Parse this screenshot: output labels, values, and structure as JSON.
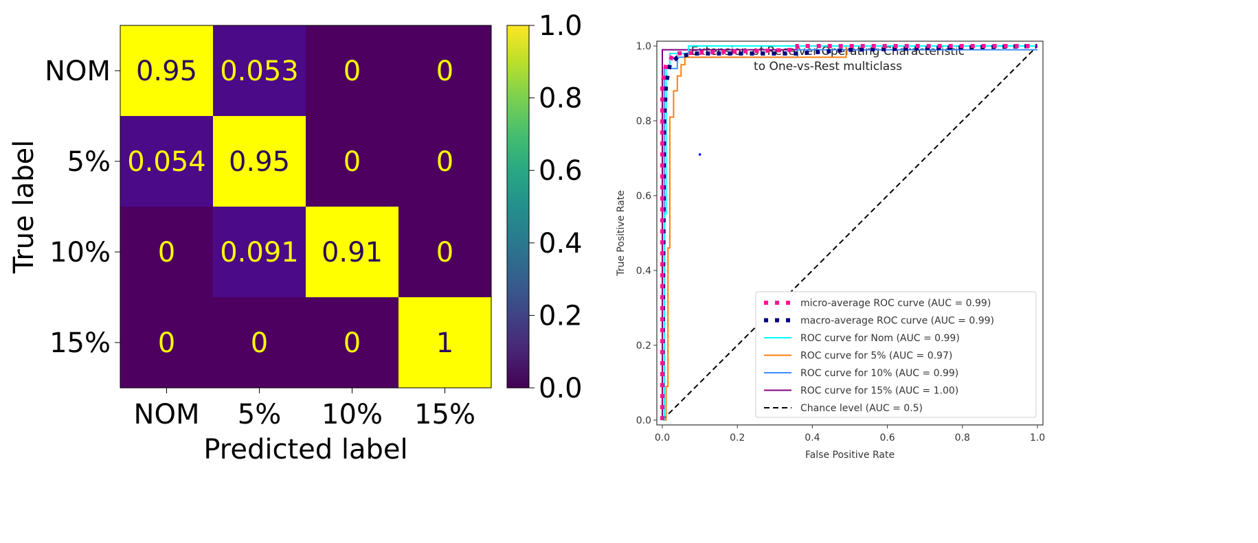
{
  "chart_data": [
    {
      "type": "heatmap",
      "title": "",
      "xlabel": "Predicted label",
      "ylabel": "True label",
      "x_categories": [
        "NOM",
        "5%",
        "10%",
        "15%"
      ],
      "y_categories": [
        "NOM",
        "5%",
        "10%",
        "15%"
      ],
      "values": [
        [
          0.95,
          0.053,
          0,
          0
        ],
        [
          0.054,
          0.95,
          0,
          0
        ],
        [
          0,
          0.091,
          0.91,
          0
        ],
        [
          0,
          0,
          0,
          1
        ]
      ],
      "value_labels": [
        [
          "0.95",
          "0.053",
          "0",
          "0"
        ],
        [
          "0.054",
          "0.95",
          "0",
          "0"
        ],
        [
          "0",
          "0.091",
          "0.91",
          "0"
        ],
        [
          "0",
          "0",
          "0",
          "1"
        ]
      ],
      "colormap": "viridis",
      "colorbar": {
        "range": [
          0,
          1
        ],
        "ticks": [
          "0.0",
          "0.2",
          "0.4",
          "0.6",
          "0.8",
          "1.0"
        ]
      }
    },
    {
      "type": "line",
      "title": "Extension of Receiver Operating Characteristic",
      "subtitle": "to One-vs-Rest multiclass",
      "xlabel": "False Positive Rate",
      "ylabel": "True Positive Rate",
      "xlim": [
        0,
        1
      ],
      "ylim": [
        0,
        1
      ],
      "xticks": [
        "0.0",
        "0.2",
        "0.4",
        "0.6",
        "0.8",
        "1.0"
      ],
      "yticks": [
        "0.0",
        "0.2",
        "0.4",
        "0.6",
        "0.8",
        "1.0"
      ],
      "legend_position": "lower-right",
      "series": [
        {
          "name": "micro-average ROC curve (AUC = 0.99)",
          "color": "#ff1493",
          "style": "dotted",
          "points": [
            [
              0,
              0
            ],
            [
              0,
              0.9
            ],
            [
              0.01,
              0.95
            ],
            [
              0.02,
              0.96
            ],
            [
              0.03,
              0.98
            ],
            [
              0.36,
              0.99
            ],
            [
              0.36,
              1.0
            ],
            [
              1,
              1
            ]
          ]
        },
        {
          "name": "macro-average ROC curve (AUC = 0.99)",
          "color": "#000080",
          "style": "dotted",
          "points": [
            [
              0,
              0
            ],
            [
              0.005,
              0.8
            ],
            [
              0.01,
              0.9
            ],
            [
              0.02,
              0.95
            ],
            [
              0.04,
              0.97
            ],
            [
              0.08,
              0.98
            ],
            [
              0.36,
              0.98
            ],
            [
              0.5,
              0.99
            ],
            [
              1,
              1
            ]
          ]
        },
        {
          "name": "ROC curve for Nom (AUC = 0.99)",
          "color": "#00ffff",
          "style": "solid",
          "points": [
            [
              0,
              0
            ],
            [
              0.005,
              0
            ],
            [
              0.005,
              0.55
            ],
            [
              0.01,
              0.55
            ],
            [
              0.01,
              0.94
            ],
            [
              0.02,
              0.94
            ],
            [
              0.02,
              0.98
            ],
            [
              0.07,
              0.98
            ],
            [
              0.07,
              1.0
            ],
            [
              1,
              1
            ]
          ]
        },
        {
          "name": "ROC curve for 5% (AUC = 0.97)",
          "color": "#ff7f0e",
          "style": "solid",
          "points": [
            [
              0,
              0
            ],
            [
              0.01,
              0
            ],
            [
              0.01,
              0.09
            ],
            [
              0.015,
              0.09
            ],
            [
              0.015,
              0.46
            ],
            [
              0.02,
              0.46
            ],
            [
              0.02,
              0.81
            ],
            [
              0.03,
              0.81
            ],
            [
              0.03,
              0.88
            ],
            [
              0.04,
              0.88
            ],
            [
              0.04,
              0.92
            ],
            [
              0.05,
              0.92
            ],
            [
              0.05,
              0.95
            ],
            [
              0.06,
              0.95
            ],
            [
              0.06,
              0.97
            ],
            [
              0.49,
              0.97
            ],
            [
              0.49,
              1.0
            ],
            [
              1,
              1
            ]
          ]
        },
        {
          "name": "ROC curve for 10% (AUC = 0.99)",
          "color": "#3c8cff",
          "style": "solid",
          "points": [
            [
              0,
              0
            ],
            [
              0.005,
              0
            ],
            [
              0.005,
              0.94
            ],
            [
              0.04,
              0.94
            ],
            [
              0.04,
              0.97
            ],
            [
              0.36,
              0.97
            ],
            [
              0.36,
              0.99
            ],
            [
              1,
              0.99
            ]
          ]
        },
        {
          "name": "ROC curve for 15% (AUC = 1.00)",
          "color": "#800080",
          "style": "solid",
          "points": [
            [
              0,
              0
            ],
            [
              0,
              0.99
            ],
            [
              1,
              0.99
            ]
          ]
        },
        {
          "name": "Chance level (AUC = 0.5)",
          "color": "#000000",
          "style": "dashed",
          "points": [
            [
              0,
              0
            ],
            [
              1,
              1
            ]
          ]
        }
      ],
      "annotations": [
        {
          "type": "point",
          "x": 0.1,
          "y": 0.71,
          "color": "#0000ff"
        }
      ]
    }
  ]
}
